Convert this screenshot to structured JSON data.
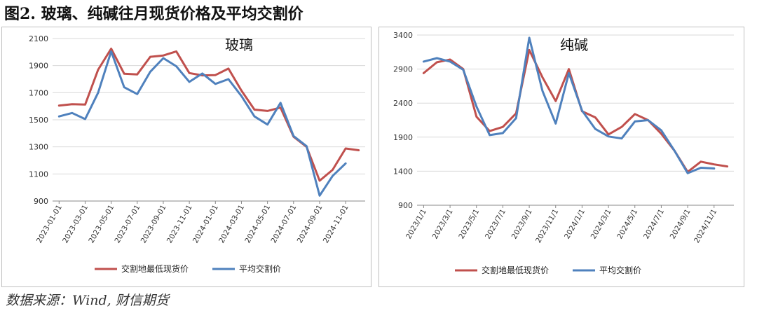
{
  "figure": {
    "title": "图2.  玻璃、纯碱往月现货价格及平均交割价",
    "source": "数据来源：Wind, 财信期货"
  },
  "colors": {
    "red": "#C0504D",
    "blue": "#4F81BD",
    "grid": "#d9d9d9",
    "axis": "#333333"
  },
  "chart_data": [
    {
      "type": "line",
      "title": "玻璃",
      "ylim": [
        900,
        2100
      ],
      "yticks": [
        900,
        1100,
        1300,
        1500,
        1700,
        1900,
        2100
      ],
      "x": [
        "2023-01-01",
        "2023-02-01",
        "2023-03-01",
        "2023-04-01",
        "2023-05-01",
        "2023-06-01",
        "2023-07-01",
        "2023-08-01",
        "2023-09-01",
        "2023-10-01",
        "2023-11-01",
        "2023-12-01",
        "2024-01-01",
        "2024-02-01",
        "2024-03-01",
        "2024-04-01",
        "2024-05-01",
        "2024-06-01",
        "2024-07-01",
        "2024-08-01",
        "2024-09-01",
        "2024-10-01",
        "2024-11-01",
        "2024-12-01"
      ],
      "xtick_labels": [
        "2023-01-01",
        "2023-03-01",
        "2023-05-01",
        "2023-07-01",
        "2023-09-01",
        "2023-11-01",
        "2024-01-01",
        "2024-03-01",
        "2024-05-01",
        "2024-07-01",
        "2024-09-01",
        "2024-11-01"
      ],
      "grid": true,
      "legend_position": "bottom",
      "series": [
        {
          "name": "交割地最低现货价",
          "color": "red",
          "values": [
            1605,
            1615,
            1612,
            1870,
            2025,
            1840,
            1835,
            1965,
            1975,
            2005,
            1845,
            1828,
            1830,
            1878,
            1715,
            1575,
            1565,
            1590,
            1375,
            1300,
            1050,
            1130,
            1288,
            1275
          ]
        },
        {
          "name": "平均交割价",
          "color": "blue",
          "values": [
            1525,
            1550,
            1505,
            1700,
            2005,
            1740,
            1690,
            1855,
            1955,
            1895,
            1780,
            1842,
            1765,
            1800,
            1675,
            1525,
            1465,
            1625,
            1380,
            1305,
            940,
            1085,
            1178,
            null
          ]
        }
      ]
    },
    {
      "type": "line",
      "title": "纯碱",
      "ylim": [
        900,
        3400
      ],
      "yticks": [
        900,
        1400,
        1900,
        2400,
        2900,
        3400
      ],
      "x": [
        "2023/1/1",
        "2023/2/1",
        "2023/3/1",
        "2023/4/1",
        "2023/5/1",
        "2023/6/1",
        "2023/7/1",
        "2023/8/1",
        "2023/9/1",
        "2023/10/1",
        "2023/11/1",
        "2023/12/1",
        "2024/1/1",
        "2024/2/1",
        "2024/3/1",
        "2024/4/1",
        "2024/5/1",
        "2024/6/1",
        "2024/7/1",
        "2024/8/1",
        "2024/9/1",
        "2024/10/1",
        "2024/11/1",
        "2024/12/1"
      ],
      "xtick_labels": [
        "2023/1/1",
        "2023/3/1",
        "2023/5/1",
        "2023/7/1",
        "2023/9/1",
        "2023/11/1",
        "2024/1/1",
        "2024/3/1",
        "2024/5/1",
        "2024/7/1",
        "2024/9/1",
        "2024/11/1"
      ],
      "grid": true,
      "legend_position": "bottom",
      "series": [
        {
          "name": "交割地最低现货价",
          "color": "red",
          "values": [
            2840,
            3000,
            3040,
            2900,
            2200,
            1990,
            2050,
            2250,
            3180,
            2780,
            2430,
            2900,
            2280,
            2190,
            1940,
            2050,
            2240,
            2150,
            1950,
            1700,
            1390,
            1540,
            1500,
            1470
          ]
        },
        {
          "name": "平均交割价",
          "color": "blue",
          "values": [
            3010,
            3060,
            3010,
            2890,
            2350,
            1930,
            1960,
            2180,
            3360,
            2580,
            2100,
            2840,
            2290,
            2020,
            1910,
            1880,
            2130,
            2150,
            2000,
            1700,
            1370,
            1450,
            1440,
            null
          ]
        }
      ]
    }
  ]
}
